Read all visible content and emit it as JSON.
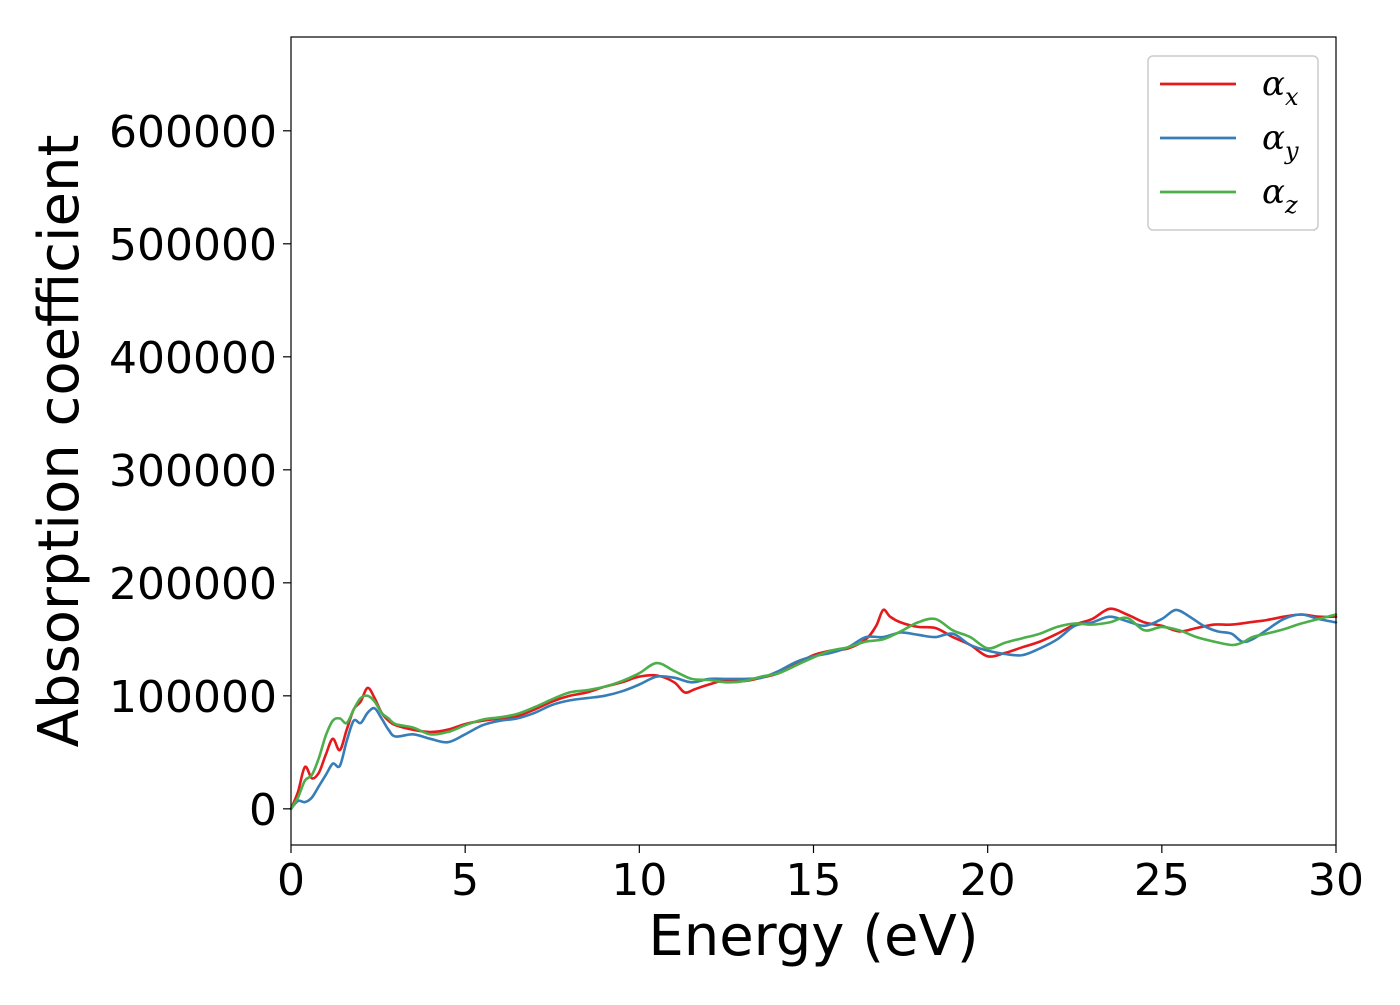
{
  "chart_data": {
    "type": "line",
    "xlabel": "Energy (eV)",
    "ylabel": "Absorption coefficient",
    "xlim": [
      0,
      30
    ],
    "ylim": [
      -32000,
      683000
    ],
    "xticks": [
      0,
      5,
      10,
      15,
      20,
      25,
      30
    ],
    "yticks": [
      0,
      100000,
      200000,
      300000,
      400000,
      500000,
      600000
    ],
    "grid": false,
    "legend_position": "top-right",
    "series": [
      {
        "name": "α_x",
        "legend_base": "α",
        "legend_sub": "x",
        "color": "#e41a1c",
        "x": [
          0,
          0.2,
          0.4,
          0.6,
          0.8,
          1.0,
          1.2,
          1.4,
          1.6,
          1.8,
          2.0,
          2.2,
          2.4,
          2.6,
          2.8,
          3.0,
          3.5,
          4.0,
          4.5,
          5.0,
          5.5,
          6.0,
          6.5,
          7.0,
          7.5,
          8.0,
          8.5,
          9.0,
          9.5,
          10.0,
          10.5,
          11.0,
          11.3,
          11.6,
          12.0,
          12.5,
          13.0,
          13.5,
          14.0,
          14.5,
          15.0,
          15.5,
          16.0,
          16.5,
          16.8,
          17.0,
          17.2,
          17.5,
          18.0,
          18.5,
          19.0,
          19.5,
          20.0,
          20.5,
          21.0,
          21.5,
          22.0,
          22.5,
          23.0,
          23.5,
          24.0,
          24.5,
          25.0,
          25.5,
          26.0,
          26.5,
          27.0,
          27.5,
          28.0,
          28.5,
          29.0,
          29.5,
          30.0
        ],
        "values": [
          0,
          15000,
          37000,
          27000,
          32000,
          48000,
          62000,
          52000,
          70000,
          88000,
          95000,
          107000,
          98000,
          85000,
          78000,
          74000,
          70000,
          68000,
          70000,
          75000,
          78000,
          80000,
          82000,
          88000,
          95000,
          100000,
          103000,
          108000,
          112000,
          117000,
          118000,
          112000,
          103000,
          106000,
          110000,
          114000,
          113000,
          116000,
          120000,
          128000,
          136000,
          140000,
          142000,
          150000,
          162000,
          176000,
          170000,
          165000,
          161000,
          160000,
          152000,
          145000,
          135000,
          138000,
          143000,
          148000,
          155000,
          163000,
          168000,
          177000,
          172000,
          165000,
          162000,
          157000,
          160000,
          163000,
          163000,
          165000,
          167000,
          170000,
          172000,
          170000,
          170000
        ]
      },
      {
        "name": "α_y",
        "legend_base": "α",
        "legend_sub": "y",
        "color": "#377eb8",
        "x": [
          0,
          0.2,
          0.4,
          0.6,
          0.8,
          1.0,
          1.2,
          1.4,
          1.6,
          1.8,
          2.0,
          2.2,
          2.4,
          2.6,
          2.8,
          3.0,
          3.5,
          4.0,
          4.5,
          5.0,
          5.5,
          6.0,
          6.5,
          7.0,
          7.5,
          8.0,
          8.5,
          9.0,
          9.5,
          10.0,
          10.5,
          11.0,
          11.5,
          12.0,
          12.5,
          13.0,
          13.5,
          14.0,
          14.5,
          15.0,
          15.5,
          16.0,
          16.5,
          17.0,
          17.5,
          18.0,
          18.5,
          19.0,
          19.5,
          20.0,
          20.5,
          21.0,
          21.5,
          22.0,
          22.5,
          23.0,
          23.5,
          24.0,
          24.5,
          25.0,
          25.4,
          25.8,
          26.2,
          26.6,
          27.0,
          27.3,
          27.6,
          28.0,
          28.5,
          29.0,
          29.5,
          30.0
        ],
        "values": [
          0,
          7000,
          6000,
          10000,
          20000,
          30000,
          40000,
          38000,
          60000,
          78000,
          76000,
          85000,
          89000,
          80000,
          70000,
          64000,
          66000,
          62000,
          59000,
          66000,
          74000,
          78000,
          80000,
          85000,
          92000,
          96000,
          98000,
          100000,
          104000,
          110000,
          117000,
          116000,
          112000,
          115000,
          115000,
          115000,
          116000,
          122000,
          130000,
          135000,
          138000,
          143000,
          152000,
          152000,
          156000,
          154000,
          152000,
          155000,
          145000,
          140000,
          137000,
          136000,
          142000,
          150000,
          162000,
          165000,
          170000,
          166000,
          162000,
          168000,
          176000,
          170000,
          162000,
          157000,
          155000,
          148000,
          150000,
          158000,
          168000,
          172000,
          168000,
          165000
        ]
      },
      {
        "name": "α_z",
        "legend_base": "α",
        "legend_sub": "z",
        "color": "#4daf4a",
        "x": [
          0,
          0.2,
          0.4,
          0.6,
          0.8,
          1.0,
          1.2,
          1.4,
          1.6,
          1.8,
          2.0,
          2.2,
          2.4,
          2.6,
          2.8,
          3.0,
          3.5,
          4.0,
          4.5,
          5.0,
          5.5,
          6.0,
          6.5,
          7.0,
          7.5,
          8.0,
          8.5,
          9.0,
          9.5,
          10.0,
          10.5,
          11.0,
          11.5,
          12.0,
          12.5,
          13.0,
          13.5,
          14.0,
          14.5,
          15.0,
          15.5,
          16.0,
          16.5,
          17.0,
          17.5,
          18.0,
          18.5,
          19.0,
          19.5,
          20.0,
          20.5,
          21.0,
          21.5,
          22.0,
          22.5,
          23.0,
          23.5,
          24.0,
          24.5,
          25.0,
          25.5,
          26.0,
          26.5,
          27.0,
          27.3,
          27.6,
          28.0,
          28.5,
          29.0,
          29.5,
          30.0
        ],
        "values": [
          0,
          10000,
          25000,
          30000,
          45000,
          65000,
          78000,
          80000,
          76000,
          88000,
          98000,
          100000,
          95000,
          85000,
          80000,
          75000,
          72000,
          66000,
          68000,
          74000,
          79000,
          81000,
          84000,
          90000,
          97000,
          103000,
          105000,
          108000,
          113000,
          120000,
          129000,
          122000,
          115000,
          114000,
          112000,
          113000,
          117000,
          120000,
          127000,
          134000,
          140000,
          143000,
          148000,
          150000,
          157000,
          165000,
          168000,
          158000,
          152000,
          142000,
          147000,
          151000,
          155000,
          161000,
          164000,
          163000,
          165000,
          169000,
          158000,
          161000,
          158000,
          152000,
          148000,
          145000,
          147000,
          152000,
          155000,
          159000,
          164000,
          168000,
          172000
        ]
      }
    ]
  }
}
